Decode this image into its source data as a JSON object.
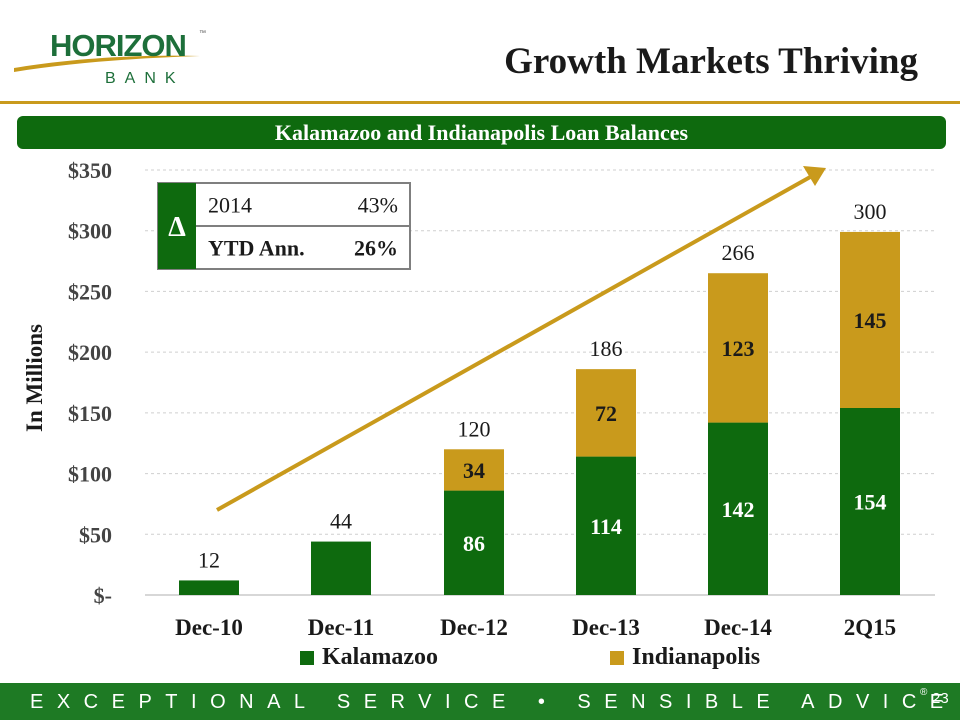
{
  "logo": {
    "main": "HORIZON",
    "sub": "BANK",
    "tm": "™"
  },
  "slide": {
    "title": "Growth Markets Thriving",
    "banner": "Kalamazoo and Indianapolis Loan Balances"
  },
  "colors": {
    "kalamazoo": "#0e6a0e",
    "indianapolis": "#c99a1c",
    "arrow": "#c99a1c"
  },
  "chart_data": {
    "type": "bar",
    "stacked": true,
    "categories": [
      "Dec-10",
      "Dec-11",
      "Dec-12",
      "Dec-13",
      "Dec-14",
      "2Q15"
    ],
    "series": [
      {
        "name": "Kalamazoo",
        "values": [
          12,
          44,
          86,
          114,
          142,
          154
        ]
      },
      {
        "name": "Indianapolis",
        "values": [
          0,
          0,
          34,
          72,
          123,
          145
        ]
      }
    ],
    "segment_labels": [
      [
        "",
        "",
        "86",
        "114",
        "142",
        "154"
      ],
      [
        "",
        "",
        "34",
        "72",
        "123",
        "145"
      ]
    ],
    "totals": [
      "12",
      "44",
      "120",
      "186",
      "266",
      "300"
    ],
    "ylabel": "In Millions",
    "ylim": [
      0,
      350
    ],
    "yticks": [
      0,
      50,
      100,
      150,
      200,
      250,
      300,
      350
    ],
    "ytick_labels": [
      "$-",
      "$50",
      "$100",
      "$150",
      "$200",
      "$250",
      "$300",
      "$350"
    ],
    "grid": true,
    "legend_position": "bottom",
    "trend_arrow": true,
    "inset_table": {
      "symbol": "Δ",
      "rows": [
        [
          "2014",
          "43%"
        ],
        [
          "YTD Ann.",
          "26%"
        ]
      ]
    }
  },
  "footer": {
    "tagline": "EXCEPTIONAL SERVICE • SENSIBLE ADVICE",
    "reg": "®",
    "page": "23"
  }
}
